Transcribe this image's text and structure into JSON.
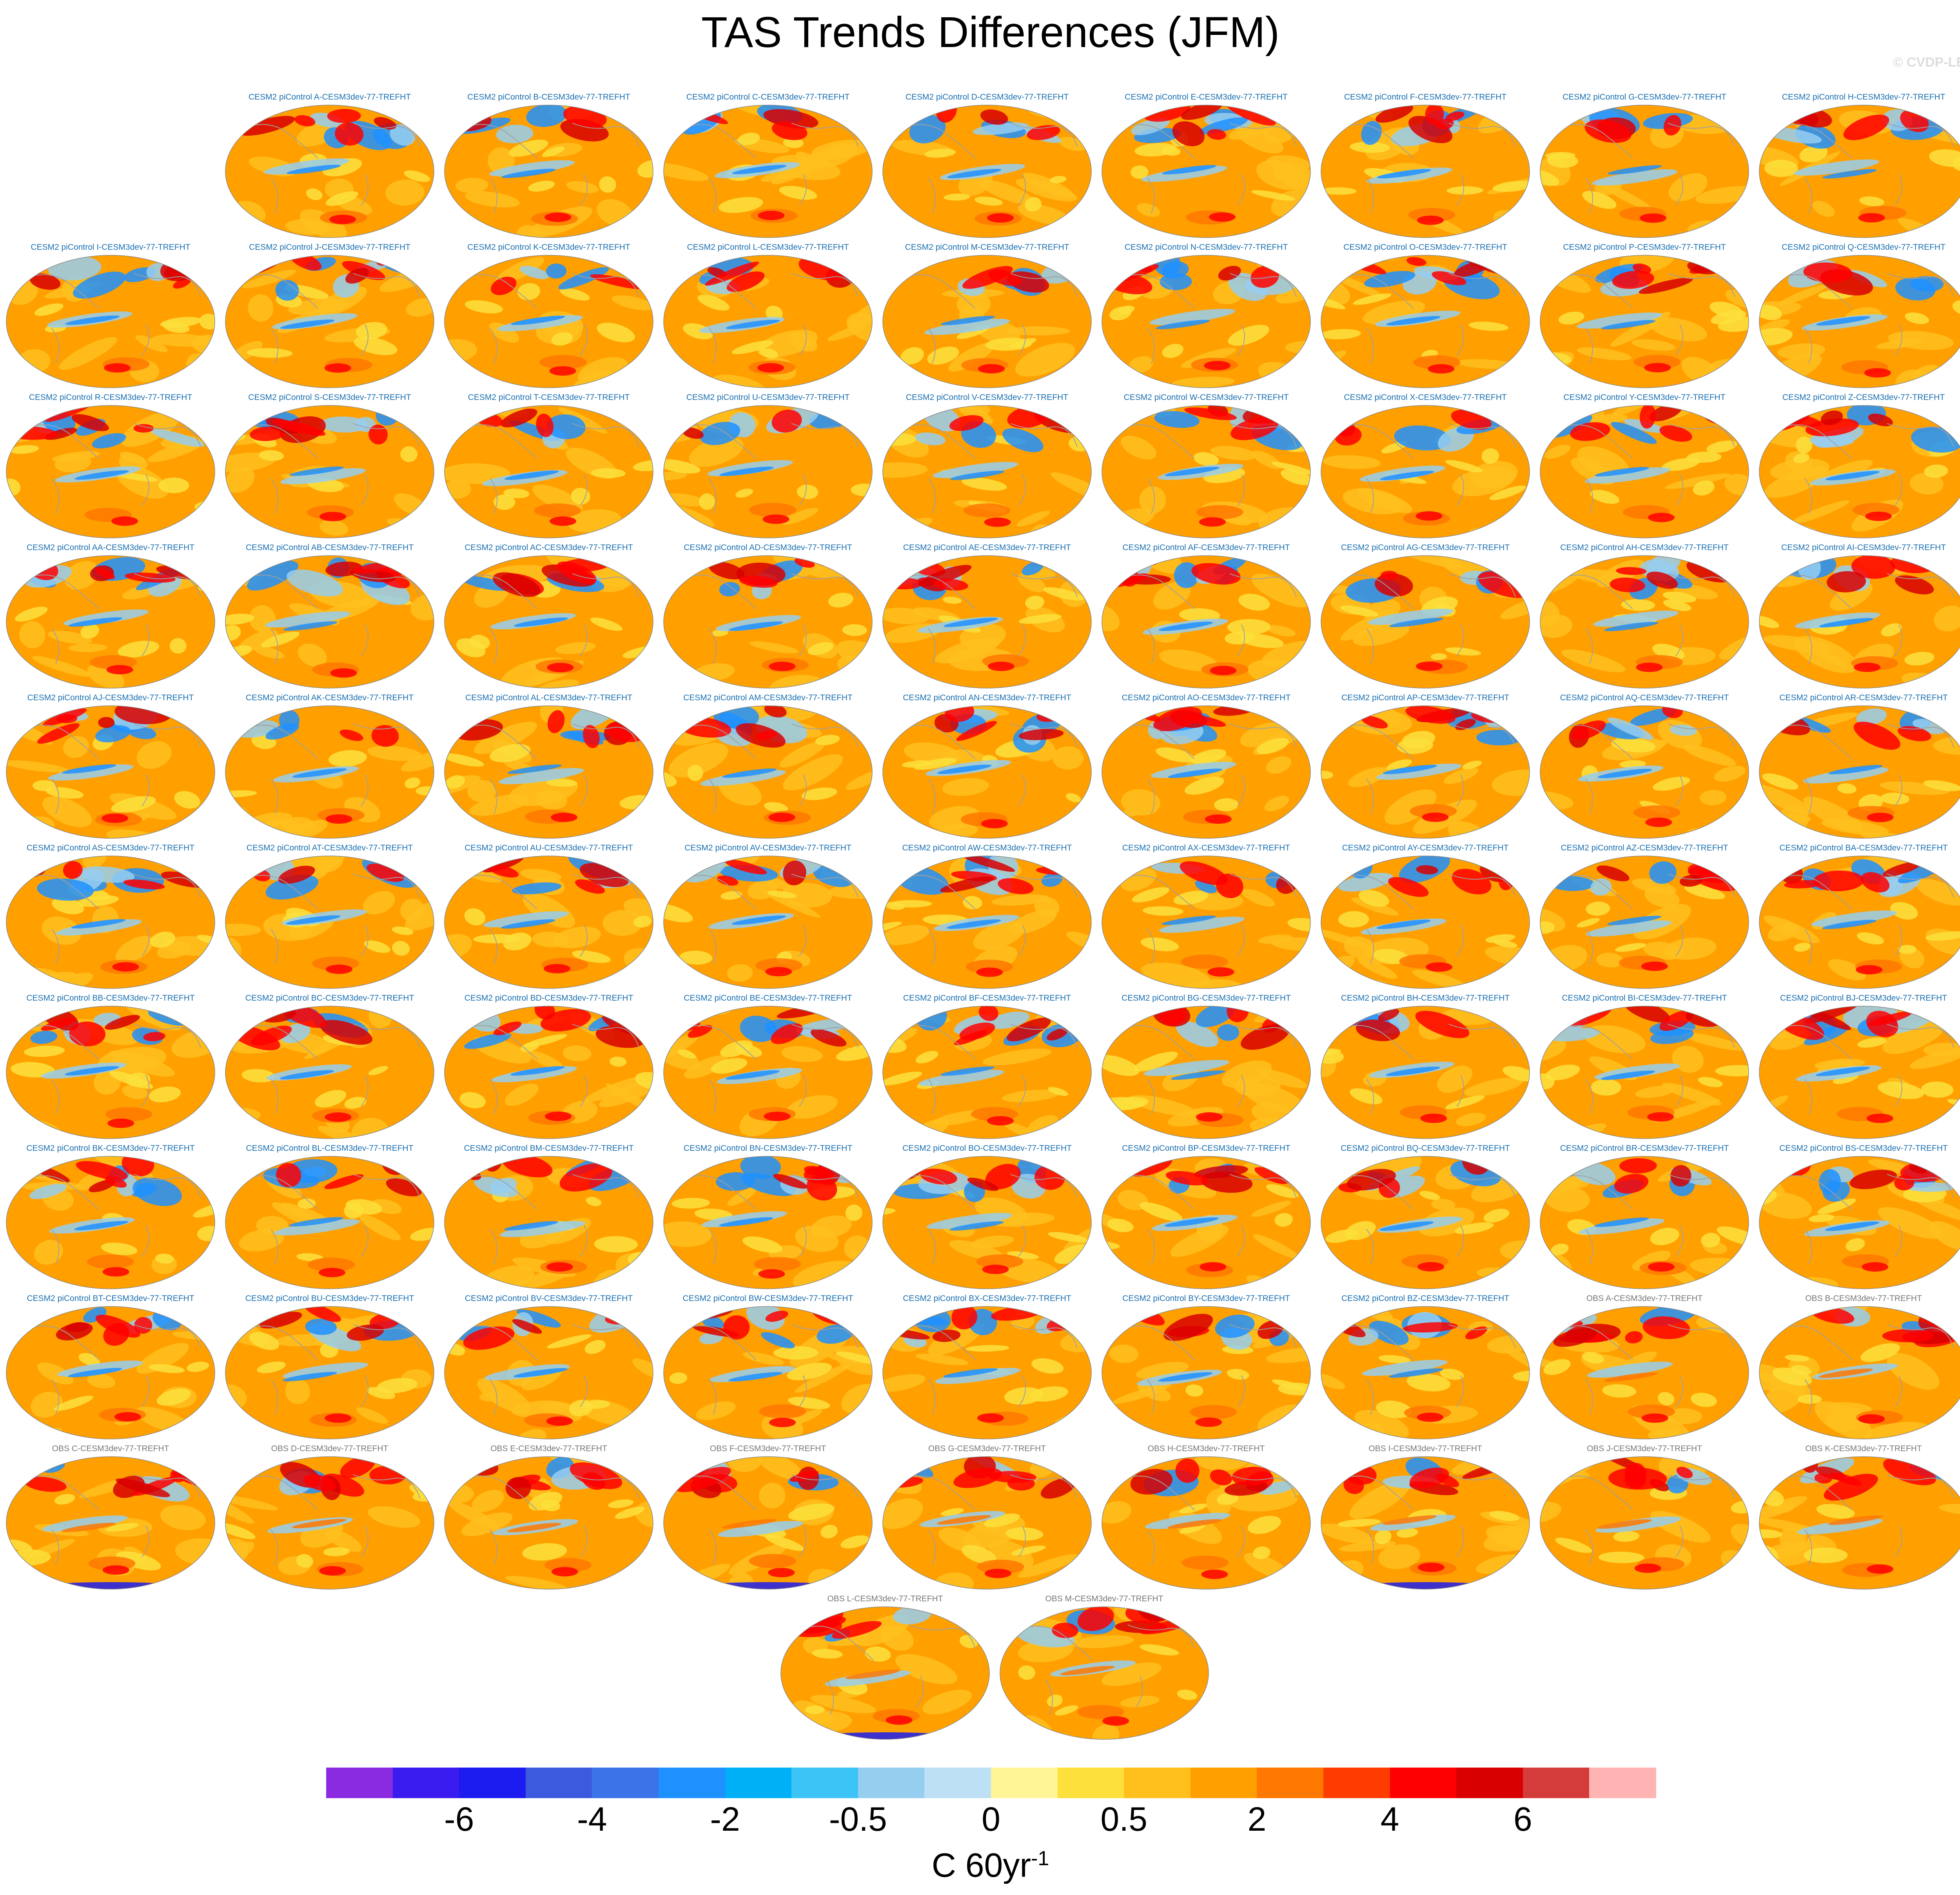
{
  "title": "TAS Trends Differences (JFM)",
  "watermark": "© CVDP-LE",
  "panel_suffix": "-CESM3dev-77-TREFHT",
  "model_prefix": "CESM2 piControl ",
  "obs_prefix": "OBS ",
  "panel_ids": [
    "A",
    "B",
    "C",
    "D",
    "E",
    "F",
    "G",
    "H",
    "I",
    "J",
    "K",
    "L",
    "M",
    "N",
    "O",
    "P",
    "Q",
    "R",
    "S",
    "T",
    "U",
    "V",
    "W",
    "X",
    "Y",
    "Z",
    "AA",
    "AB",
    "AC",
    "AD",
    "AE",
    "AF",
    "AG",
    "AH",
    "AI",
    "AJ",
    "AK",
    "AL",
    "AM",
    "AN",
    "AO",
    "AP",
    "AQ",
    "AR",
    "AS",
    "AT",
    "AU",
    "AV",
    "AW",
    "AX",
    "AY",
    "AZ",
    "BA",
    "BB",
    "BC",
    "BD",
    "BE",
    "BF",
    "BG",
    "BH",
    "BI",
    "BJ",
    "BK",
    "BL",
    "BM",
    "BN",
    "BO",
    "BP",
    "BQ",
    "BR",
    "BS",
    "BT",
    "BU",
    "BV",
    "BW",
    "BX",
    "BY",
    "BZ"
  ],
  "obs_ids": [
    "A",
    "B",
    "C",
    "D",
    "E",
    "F",
    "G",
    "H",
    "I",
    "J",
    "K",
    "L",
    "M"
  ],
  "colorbar": {
    "colors": [
      "#8a2be2",
      "#3a1cf0",
      "#1c1cf0",
      "#3c5ade",
      "#3a74e8",
      "#1e90ff",
      "#00b0f6",
      "#3cc4f6",
      "#96cef0",
      "#bee0f4",
      "#fff597",
      "#fde03c",
      "#ffc01e",
      "#ffa000",
      "#ff7800",
      "#ff3c00",
      "#ff0000",
      "#d80000",
      "#d43c3c",
      "#ffb4b4"
    ],
    "tick_labels": [
      "-6",
      "-4",
      "-2",
      "-0.5",
      "0",
      "0.5",
      "2",
      "4",
      "6"
    ],
    "tick_boundary_index": [
      2,
      4,
      6,
      8,
      10,
      12,
      14,
      16,
      18
    ],
    "units": "C 60yr",
    "units_exponent": "-1"
  },
  "map_colors": {
    "base": "#ffa000",
    "light": "#ffc01e",
    "yellow": "#fde03c",
    "warm": "#ff7800",
    "red": "#ff0000",
    "dark_red": "#d80000",
    "blue": "#1e90ff",
    "light_blue": "#96cef0",
    "deep_blue": "#1c1cf0",
    "coast": "#a0a0a0"
  }
}
